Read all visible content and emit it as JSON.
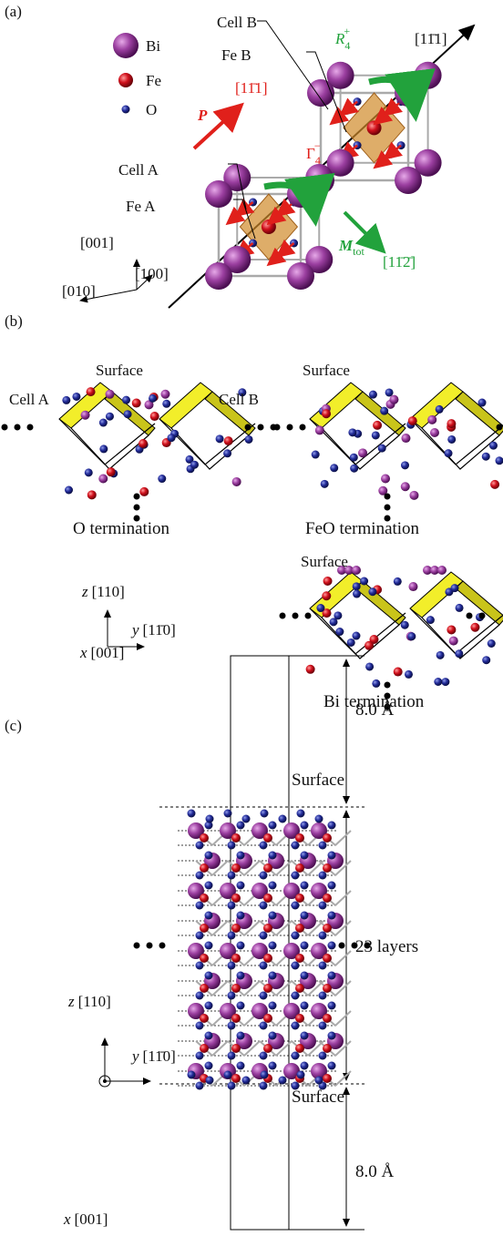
{
  "panel_a": {
    "label": "(a)",
    "legend": [
      "Bi",
      "Fe",
      "O"
    ],
    "cell_b": "Cell B",
    "fe_b": "Fe B",
    "r4": {
      "base": "R",
      "sub": "4",
      "sup": "+"
    },
    "dir_r4": "[11̄1]",
    "p": "P",
    "dir_p": "[11̄1]",
    "gamma4": {
      "base": "Γ",
      "sub": "4",
      "sup": "−"
    },
    "cell_a": "Cell A",
    "fe_a": "Fe A",
    "m_tot": {
      "base": "M",
      "sub": "tot"
    },
    "dir_m": "[11̄2̄]",
    "axes": [
      "[001]",
      "[100]",
      "[010]"
    ]
  },
  "panel_b": {
    "label": "(b)",
    "o": {
      "surface": "Surface",
      "cell_a": "Cell A",
      "cell_b": "Cell B",
      "caption": "O termination"
    },
    "feo": {
      "surface": "Surface",
      "caption": "FeO termination"
    },
    "bi": {
      "surface": "Surface",
      "caption": "Bi termination"
    },
    "axes": {
      "z": {
        "letter": "z",
        "dir": "[110]"
      },
      "y": {
        "letter": "y",
        "dir": "[11̄0]"
      },
      "x": {
        "letter": "x",
        "dir": "[001]"
      }
    }
  },
  "panel_c": {
    "label": "(c)",
    "top_gap": "8.0 Å",
    "top_surface": "Surface",
    "layers": "23 layers",
    "bottom_surface": "Surface",
    "bottom_gap": "8.0 Å",
    "axes": {
      "z": {
        "letter": "z",
        "dir": "[110]"
      },
      "y": {
        "letter": "y",
        "dir": "[11̄0]"
      },
      "x": {
        "letter": "x",
        "dir": "[001]"
      }
    }
  }
}
